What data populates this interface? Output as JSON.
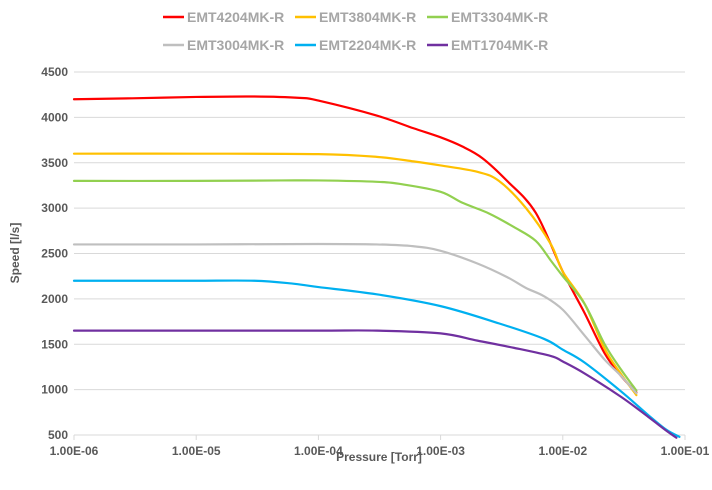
{
  "chart_data": {
    "type": "line",
    "title": "",
    "xlabel": "Pressure [Torr]",
    "ylabel": "Speed [l/s]",
    "x_scale": "log",
    "xlim": [
      1e-06,
      0.1
    ],
    "ylim": [
      500,
      4500
    ],
    "grid": "horizontal",
    "legend_position": "top",
    "x_tick_labels": [
      "1.00E-06",
      "1.00E-05",
      "1.00E-04",
      "1.00E-03",
      "1.00E-02",
      "1.00E-01"
    ],
    "x_tick_values": [
      1e-06,
      1e-05,
      0.0001,
      0.001,
      0.01,
      0.1
    ],
    "y_ticks": [
      500,
      1000,
      1500,
      2000,
      2500,
      3000,
      3500,
      4000,
      4500
    ],
    "series": [
      {
        "name": "EMT4204MK-R",
        "color": "#ff0000",
        "points": [
          [
            1e-06,
            4200
          ],
          [
            3e-06,
            4210
          ],
          [
            1e-05,
            4225
          ],
          [
            3e-05,
            4230
          ],
          [
            7e-05,
            4215
          ],
          [
            0.0001,
            4185
          ],
          [
            0.0003,
            4020
          ],
          [
            0.0006,
            3880
          ],
          [
            0.001,
            3780
          ],
          [
            0.0015,
            3680
          ],
          [
            0.0022,
            3550
          ],
          [
            0.0035,
            3300
          ],
          [
            0.006,
            2950
          ],
          [
            0.01,
            2300
          ],
          [
            0.015,
            1850
          ],
          [
            0.022,
            1400
          ],
          [
            0.03,
            1150
          ],
          [
            0.04,
            970
          ]
        ]
      },
      {
        "name": "EMT3804MK-R",
        "color": "#ffc000",
        "points": [
          [
            1e-06,
            3600
          ],
          [
            1e-05,
            3600
          ],
          [
            0.0001,
            3595
          ],
          [
            0.0003,
            3565
          ],
          [
            0.0006,
            3515
          ],
          [
            0.001,
            3470
          ],
          [
            0.002,
            3400
          ],
          [
            0.003,
            3300
          ],
          [
            0.005,
            3000
          ],
          [
            0.008,
            2600
          ],
          [
            0.01,
            2300
          ],
          [
            0.015,
            1950
          ],
          [
            0.022,
            1450
          ],
          [
            0.03,
            1170
          ],
          [
            0.04,
            940
          ]
        ]
      },
      {
        "name": "EMT3304MK-R",
        "color": "#92d050",
        "points": [
          [
            1e-06,
            3300
          ],
          [
            1e-05,
            3300
          ],
          [
            5e-05,
            3305
          ],
          [
            0.0001,
            3305
          ],
          [
            0.0003,
            3290
          ],
          [
            0.0005,
            3260
          ],
          [
            0.001,
            3180
          ],
          [
            0.0015,
            3060
          ],
          [
            0.0025,
            2940
          ],
          [
            0.004,
            2790
          ],
          [
            0.006,
            2640
          ],
          [
            0.008,
            2420
          ],
          [
            0.01,
            2250
          ],
          [
            0.015,
            1950
          ],
          [
            0.022,
            1500
          ],
          [
            0.03,
            1220
          ],
          [
            0.04,
            990
          ]
        ]
      },
      {
        "name": "EMT3004MK-R",
        "color": "#bfbfbf",
        "points": [
          [
            1e-06,
            2600
          ],
          [
            1e-05,
            2600
          ],
          [
            0.0001,
            2605
          ],
          [
            0.0003,
            2600
          ],
          [
            0.0006,
            2580
          ],
          [
            0.001,
            2530
          ],
          [
            0.002,
            2390
          ],
          [
            0.0035,
            2240
          ],
          [
            0.005,
            2120
          ],
          [
            0.007,
            2030
          ],
          [
            0.01,
            1880
          ],
          [
            0.015,
            1600
          ],
          [
            0.022,
            1330
          ],
          [
            0.03,
            1150
          ],
          [
            0.04,
            960
          ]
        ]
      },
      {
        "name": "EMT2204MK-R",
        "color": "#00b0f0",
        "points": [
          [
            1e-06,
            2200
          ],
          [
            3e-06,
            2200
          ],
          [
            1e-05,
            2200
          ],
          [
            3e-05,
            2200
          ],
          [
            6e-05,
            2170
          ],
          [
            0.0001,
            2130
          ],
          [
            0.0003,
            2050
          ],
          [
            0.001,
            1920
          ],
          [
            0.003,
            1730
          ],
          [
            0.007,
            1560
          ],
          [
            0.01,
            1440
          ],
          [
            0.015,
            1300
          ],
          [
            0.03,
            980
          ],
          [
            0.05,
            720
          ],
          [
            0.07,
            560
          ],
          [
            0.09,
            480
          ]
        ]
      },
      {
        "name": "EMT1704MK-R",
        "color": "#7030a0",
        "points": [
          [
            1e-06,
            1650
          ],
          [
            1e-05,
            1650
          ],
          [
            0.0001,
            1650
          ],
          [
            0.0003,
            1650
          ],
          [
            0.001,
            1620
          ],
          [
            0.002,
            1540
          ],
          [
            0.004,
            1460
          ],
          [
            0.008,
            1370
          ],
          [
            0.01,
            1310
          ],
          [
            0.015,
            1180
          ],
          [
            0.03,
            920
          ],
          [
            0.05,
            700
          ],
          [
            0.07,
            550
          ],
          [
            0.085,
            470
          ]
        ]
      }
    ]
  }
}
